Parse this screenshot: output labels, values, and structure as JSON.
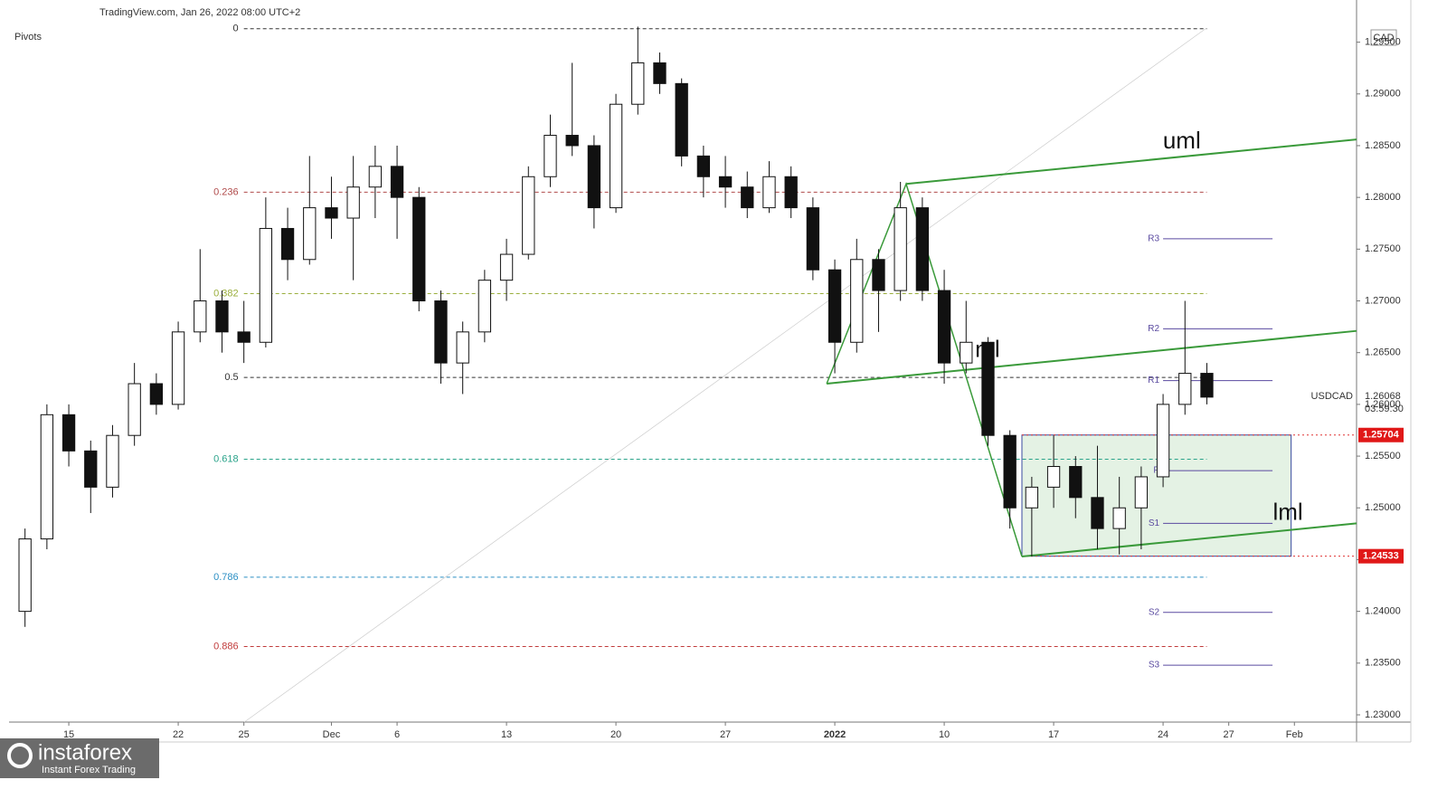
{
  "chart_data": {
    "type": "candlestick",
    "header": "TradingView.com, Jan 26, 2022 08:00 UTC+2",
    "indicator": "Pivots",
    "currency": "CAD",
    "symbol": "USDCAD",
    "countdown": "03:59:30",
    "last_price": 1.26068,
    "xlim": [
      -2.73,
      58.84
    ],
    "ylim": [
      1.2293,
      1.2982
    ],
    "xticks": [
      {
        "value": 0,
        "label": "15"
      },
      {
        "value": 5,
        "label": "22"
      },
      {
        "value": 8,
        "label": "25"
      },
      {
        "value": 12,
        "label": "Dec"
      },
      {
        "value": 15,
        "label": "6"
      },
      {
        "value": 20,
        "label": "13"
      },
      {
        "value": 25,
        "label": "20"
      },
      {
        "value": 30,
        "label": "27"
      },
      {
        "value": 35,
        "label": "2022"
      },
      {
        "value": 40,
        "label": "10"
      },
      {
        "value": 45,
        "label": "17"
      },
      {
        "value": 50,
        "label": "24"
      },
      {
        "value": 53,
        "label": "27"
      },
      {
        "value": 56,
        "label": "Feb"
      }
    ],
    "yticks": [
      {
        "value": 1.23,
        "label": "1.23000"
      },
      {
        "value": 1.235,
        "label": "1.23500"
      },
      {
        "value": 1.24,
        "label": "1.24000"
      },
      {
        "value": 1.245,
        "label": "1.24500"
      },
      {
        "value": 1.25,
        "label": "1.25000"
      },
      {
        "value": 1.255,
        "label": "1.25500"
      },
      {
        "value": 1.26,
        "label": "1.26000"
      },
      {
        "value": 1.265,
        "label": "1.26500"
      },
      {
        "value": 1.27,
        "label": "1.27000"
      },
      {
        "value": 1.275,
        "label": "1.27500"
      },
      {
        "value": 1.28,
        "label": "1.28000"
      },
      {
        "value": 1.285,
        "label": "1.28500"
      },
      {
        "value": 1.29,
        "label": "1.29000"
      },
      {
        "value": 1.295,
        "label": "1.29500"
      }
    ],
    "x": [
      -2,
      -1,
      0,
      1,
      2,
      3,
      4,
      5,
      6,
      7,
      8,
      9,
      10,
      11,
      12,
      13,
      14,
      15,
      16,
      17,
      18,
      19,
      20,
      21,
      22,
      23,
      24,
      25,
      26,
      27,
      28,
      29,
      30,
      31,
      32,
      33,
      34,
      35,
      36,
      37,
      38,
      39,
      40,
      41,
      42,
      43,
      44,
      45,
      46,
      47,
      48,
      49,
      50,
      51,
      52
    ],
    "open": [
      1.24,
      1.247,
      1.259,
      1.2555,
      1.252,
      1.257,
      1.262,
      1.26,
      1.267,
      1.27,
      1.267,
      1.266,
      1.277,
      1.274,
      1.279,
      1.278,
      1.281,
      1.283,
      1.28,
      1.27,
      1.264,
      1.267,
      1.272,
      1.2745,
      1.282,
      1.286,
      1.285,
      1.279,
      1.289,
      1.293,
      1.291,
      1.284,
      1.282,
      1.281,
      1.279,
      1.282,
      1.279,
      1.273,
      1.266,
      1.274,
      1.271,
      1.279,
      1.271,
      1.264,
      1.266,
      1.257,
      1.25,
      1.252,
      1.254,
      1.251,
      1.248,
      1.25,
      1.253,
      1.26,
      1.263
    ],
    "high": [
      1.248,
      1.26,
      1.26,
      1.2565,
      1.258,
      1.264,
      1.263,
      1.268,
      1.275,
      1.271,
      1.27,
      1.28,
      1.279,
      1.284,
      1.282,
      1.284,
      1.285,
      1.285,
      1.281,
      1.271,
      1.268,
      1.273,
      1.276,
      1.283,
      1.288,
      1.293,
      1.286,
      1.29,
      1.2965,
      1.294,
      1.2915,
      1.285,
      1.284,
      1.2825,
      1.2835,
      1.283,
      1.28,
      1.274,
      1.276,
      1.275,
      1.2815,
      1.28,
      1.273,
      1.27,
      1.2665,
      1.2575,
      1.253,
      1.257,
      1.255,
      1.256,
      1.253,
      1.254,
      1.261,
      1.27,
      1.264
    ],
    "low": [
      1.2385,
      1.246,
      1.254,
      1.2495,
      1.251,
      1.256,
      1.259,
      1.2595,
      1.266,
      1.265,
      1.264,
      1.2655,
      1.272,
      1.2735,
      1.276,
      1.272,
      1.278,
      1.276,
      1.269,
      1.262,
      1.261,
      1.266,
      1.27,
      1.274,
      1.281,
      1.284,
      1.277,
      1.2785,
      1.288,
      1.29,
      1.283,
      1.28,
      1.279,
      1.278,
      1.2785,
      1.278,
      1.272,
      1.263,
      1.265,
      1.267,
      1.27,
      1.27,
      1.262,
      1.263,
      1.256,
      1.248,
      1.2453,
      1.25,
      1.249,
      1.246,
      1.2455,
      1.246,
      1.252,
      1.259,
      1.26
    ],
    "close": [
      1.247,
      1.259,
      1.2555,
      1.252,
      1.257,
      1.262,
      1.26,
      1.267,
      1.27,
      1.267,
      1.266,
      1.277,
      1.274,
      1.279,
      1.278,
      1.281,
      1.283,
      1.28,
      1.27,
      1.264,
      1.267,
      1.272,
      1.2745,
      1.282,
      1.286,
      1.285,
      1.279,
      1.289,
      1.293,
      1.291,
      1.284,
      1.282,
      1.281,
      1.279,
      1.282,
      1.279,
      1.273,
      1.266,
      1.274,
      1.271,
      1.279,
      1.271,
      1.264,
      1.266,
      1.257,
      1.25,
      1.252,
      1.254,
      1.251,
      1.248,
      1.25,
      1.253,
      1.26,
      1.263,
      1.2607
    ],
    "fib": {
      "x": [
        8,
        52
      ],
      "levels": [
        {
          "ratio": 0,
          "price": 1.2963,
          "color": "#333333"
        },
        {
          "ratio": 0.236,
          "price": 1.2805,
          "color": "#b04a4a"
        },
        {
          "ratio": 0.382,
          "price": 1.2707,
          "color": "#9aae3c"
        },
        {
          "ratio": 0.5,
          "price": 1.2626,
          "color": "#333333"
        },
        {
          "ratio": 0.618,
          "price": 1.2547,
          "color": "#2aa38a"
        },
        {
          "ratio": 0.786,
          "price": 1.2433,
          "color": "#2b8fc4"
        },
        {
          "ratio": 0.886,
          "price": 1.2366,
          "color": "#c03a3a"
        }
      ]
    },
    "pivots": {
      "x": [
        50,
        55
      ],
      "color": "#5a4aa0",
      "levels": [
        {
          "label": "R3",
          "price": 1.276
        },
        {
          "label": "R2",
          "price": 1.2673
        },
        {
          "label": "R1",
          "price": 1.2623
        },
        {
          "label": "P",
          "price": 1.2536
        },
        {
          "label": "S1",
          "price": 1.2485
        },
        {
          "label": "S2",
          "price": 1.2399
        },
        {
          "label": "S3",
          "price": 1.2348
        }
      ]
    },
    "pitchfork": {
      "color": "#3a9a3a",
      "lines": [
        {
          "label": "uml",
          "x": [
            38.26,
            58.84
          ],
          "y": [
            1.2813,
            1.2856
          ]
        },
        {
          "label": "ml",
          "x": [
            34.63,
            58.84
          ],
          "y": [
            1.262,
            1.2671
          ]
        },
        {
          "label": "lml",
          "x": [
            43.55,
            58.84
          ],
          "y": [
            1.2453,
            1.2485
          ]
        }
      ],
      "handle": {
        "x": [
          38.26,
          34.63,
          43.55
        ],
        "y": [
          1.2813,
          1.262,
          1.2453
        ]
      }
    },
    "trendline": {
      "x": [
        8.02,
        51.94
      ],
      "y": [
        1.2293,
        1.2963
      ]
    },
    "range_box": {
      "x": [
        43.55,
        55.85
      ],
      "top": 1.25704,
      "bottom": 1.24533
    },
    "watermark": {
      "brand": "instaforex",
      "tagline": "Instant Forex Trading"
    }
  }
}
